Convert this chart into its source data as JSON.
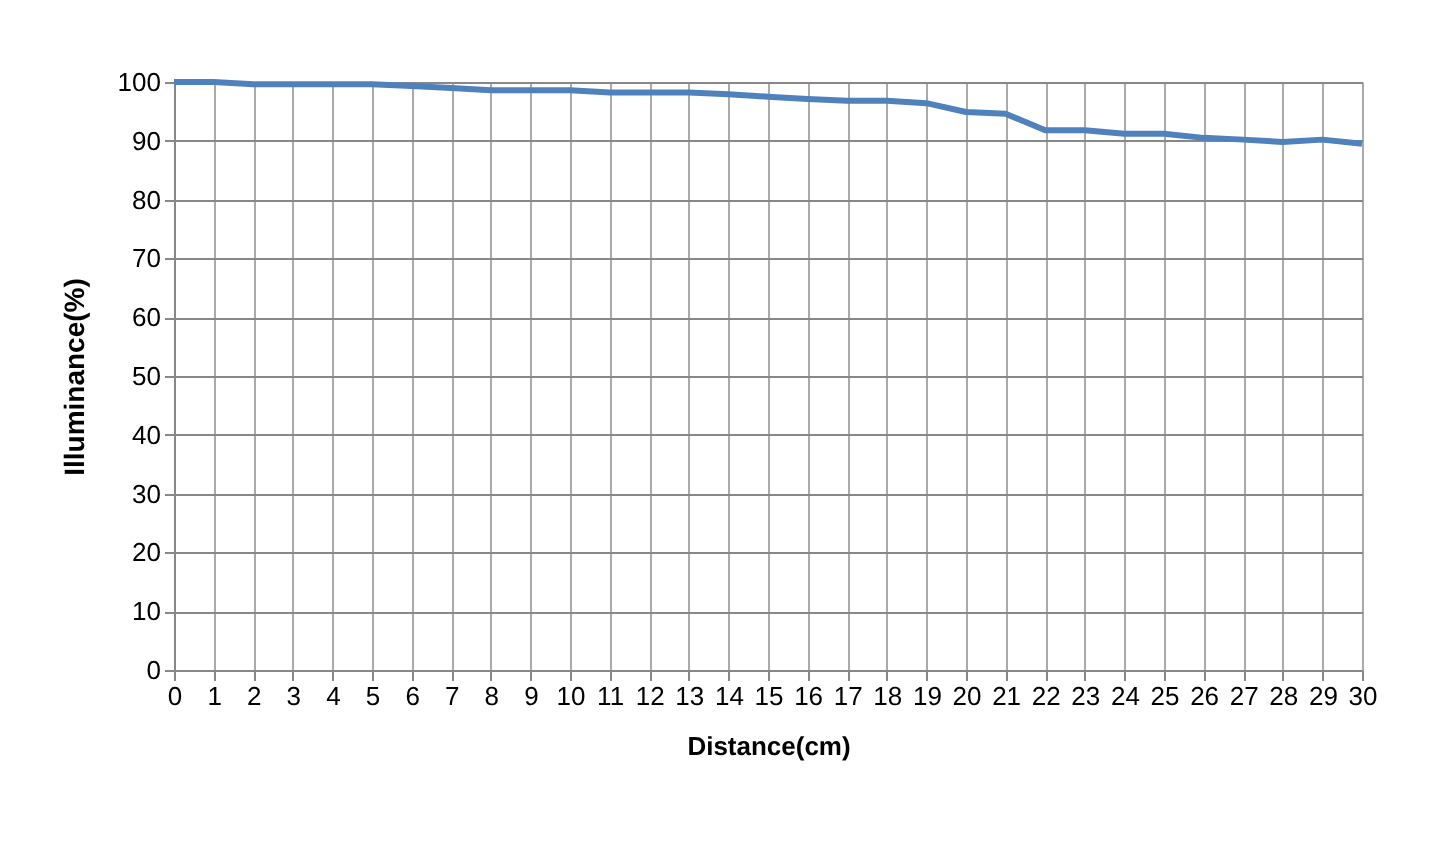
{
  "chart_data": {
    "type": "line",
    "xlabel": "Distance(cm)",
    "ylabel": "Illuminance(%)",
    "x": [
      0,
      1,
      2,
      3,
      4,
      5,
      6,
      7,
      8,
      9,
      10,
      11,
      12,
      13,
      14,
      15,
      16,
      17,
      18,
      19,
      20,
      21,
      22,
      23,
      24,
      25,
      26,
      27,
      28,
      29,
      30
    ],
    "series": [
      {
        "color": "#4f81bd",
        "values": [
          100,
          100,
          99.6,
          99.6,
          99.6,
          99.6,
          99.3,
          99,
          98.6,
          98.6,
          98.6,
          98.2,
          98.2,
          98.2,
          97.9,
          97.5,
          97.1,
          96.8,
          96.8,
          96.4,
          94.9,
          94.6,
          91.8,
          91.8,
          91.2,
          91.2,
          90.5,
          90.2,
          89.8,
          90.2,
          89.5
        ]
      }
    ],
    "xlim": [
      0,
      30
    ],
    "xticks": [
      0,
      1,
      2,
      3,
      4,
      5,
      6,
      7,
      8,
      9,
      10,
      11,
      12,
      13,
      14,
      15,
      16,
      17,
      18,
      19,
      20,
      21,
      22,
      23,
      24,
      25,
      26,
      27,
      28,
      29,
      30
    ],
    "ylim": [
      0,
      100
    ],
    "yticks": [
      0,
      10,
      20,
      30,
      40,
      50,
      60,
      70,
      80,
      90,
      100
    ],
    "grid": true,
    "marker": "none",
    "line_style": "solid"
  }
}
